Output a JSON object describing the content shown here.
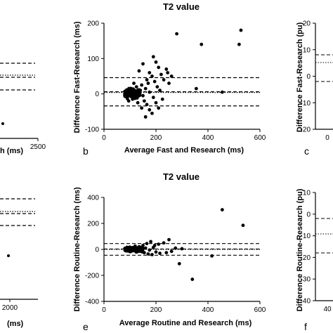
{
  "chart_data": [
    {
      "type": "scatter",
      "panel": "b",
      "title": "T2 value",
      "xlabel": "Average Fast and Research (ms)",
      "ylabel": "Difference Fast-Research (ms)",
      "xlim": [
        0,
        600
      ],
      "ylim": [
        -100,
        200
      ],
      "xticks": [
        0,
        200,
        400,
        600
      ],
      "yticks": [
        -100,
        0,
        100,
        200
      ],
      "hlines": [
        {
          "y": 46,
          "style": "dashed"
        },
        {
          "y": 6,
          "style": "dashed"
        },
        {
          "y": 4,
          "style": "dotted"
        },
        {
          "y": -34,
          "style": "dashed"
        }
      ],
      "points": [
        [
          527,
          180
        ],
        [
          280,
          170
        ],
        [
          375,
          140
        ],
        [
          520,
          140
        ],
        [
          455,
          5
        ],
        [
          355,
          15
        ],
        [
          190,
          105
        ],
        [
          200,
          90
        ],
        [
          210,
          75
        ],
        [
          240,
          70
        ],
        [
          245,
          60
        ],
        [
          260,
          50
        ],
        [
          150,
          85
        ],
        [
          135,
          65
        ],
        [
          175,
          60
        ],
        [
          185,
          50
        ],
        [
          220,
          55
        ],
        [
          230,
          40
        ],
        [
          250,
          30
        ],
        [
          165,
          40
        ],
        [
          115,
          30
        ],
        [
          125,
          20
        ],
        [
          140,
          10
        ],
        [
          150,
          -5
        ],
        [
          155,
          -20
        ],
        [
          165,
          -30
        ],
        [
          175,
          -45
        ],
        [
          185,
          -55
        ],
        [
          160,
          -65
        ],
        [
          145,
          -40
        ],
        [
          130,
          -25
        ],
        [
          110,
          -15
        ],
        [
          100,
          -5
        ],
        [
          90,
          5
        ],
        [
          105,
          15
        ],
        [
          120,
          -10
        ],
        [
          135,
          0
        ],
        [
          160,
          15
        ],
        [
          175,
          5
        ],
        [
          190,
          -10
        ],
        [
          205,
          20
        ],
        [
          215,
          10
        ],
        [
          80,
          0
        ],
        [
          95,
          -20
        ],
        [
          200,
          -25
        ],
        [
          210,
          -40
        ],
        [
          225,
          -15
        ],
        [
          145,
          25
        ],
        [
          170,
          30
        ],
        [
          195,
          35
        ]
      ],
      "cluster": {
        "x_range": [
          80,
          140
        ],
        "y_range": [
          -15,
          20
        ],
        "count": 120
      }
    },
    {
      "type": "scatter",
      "panel": "e",
      "title": "T2 value",
      "xlabel": "Average Routine and Research (ms)",
      "ylabel": "Difference Routine-Research (ms)",
      "xlim": [
        0,
        600
      ],
      "ylim": [
        -400,
        400
      ],
      "xticks": [
        0,
        200,
        400,
        600
      ],
      "yticks": [
        -400,
        -200,
        0,
        200,
        400
      ],
      "hlines": [
        {
          "y": 45,
          "style": "dashed"
        },
        {
          "y": 3,
          "style": "dashed"
        },
        {
          "y": 0,
          "style": "dotted"
        },
        {
          "y": -45,
          "style": "dashed"
        }
      ],
      "points": [
        [
          455,
          305
        ],
        [
          535,
          185
        ],
        [
          340,
          -230
        ],
        [
          290,
          -110
        ],
        [
          415,
          -50
        ],
        [
          250,
          75
        ],
        [
          230,
          50
        ],
        [
          210,
          40
        ],
        [
          195,
          30
        ],
        [
          180,
          60
        ],
        [
          165,
          45
        ],
        [
          150,
          30
        ],
        [
          200,
          -20
        ],
        [
          215,
          -30
        ],
        [
          240,
          -25
        ],
        [
          260,
          -15
        ],
        [
          275,
          10
        ],
        [
          300,
          5
        ],
        [
          185,
          -40
        ],
        [
          170,
          -35
        ],
        [
          155,
          -25
        ],
        [
          140,
          -15
        ],
        [
          125,
          -20
        ],
        [
          110,
          10
        ],
        [
          95,
          15
        ],
        [
          120,
          25
        ],
        [
          135,
          20
        ],
        [
          160,
          10
        ],
        [
          175,
          -5
        ],
        [
          190,
          15
        ]
      ],
      "cluster": {
        "x_range": [
          80,
          150
        ],
        "y_range": [
          -25,
          25
        ],
        "count": 110
      }
    },
    {
      "type": "scatter",
      "panel": "left-top-partial",
      "xlabel": "h (ms)",
      "xticks": [
        2500
      ],
      "hlines": [
        {
          "style": "dashed"
        },
        {
          "style": "dotted"
        },
        {
          "style": "dashed"
        },
        {
          "style": "dashed"
        }
      ]
    },
    {
      "type": "scatter",
      "panel": "left-bottom-partial",
      "xlabel": "(ms)",
      "xticks": [
        2000
      ],
      "hlines": [
        {
          "style": "dashed"
        },
        {
          "style": "dotted"
        },
        {
          "style": "dashed"
        },
        {
          "style": "dashed"
        }
      ]
    },
    {
      "type": "scatter",
      "panel": "c",
      "ylabel": "Difference Fast-Research (pu)",
      "yticks": [
        -20,
        -10,
        0,
        10,
        20
      ],
      "xticks": [
        0
      ]
    },
    {
      "type": "scatter",
      "panel": "f",
      "ylabel": "Difference Routine-Research (pu)",
      "yticks": [
        -40,
        -30,
        -20,
        -10,
        0,
        10
      ],
      "xticks": [
        40
      ]
    }
  ]
}
